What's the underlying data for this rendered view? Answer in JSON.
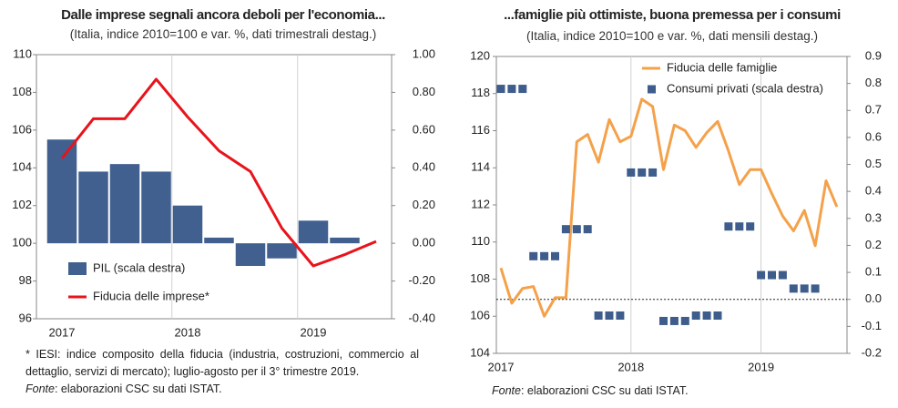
{
  "chart_data": [
    {
      "type": "bar",
      "title": "Dalle imprese segnali ancora deboli per l'economia...",
      "subtitle": "(Italia, indice 2010=100 e var. %, dati trimestrali destag.)",
      "categories": [
        "2017",
        null,
        null,
        null,
        "2018",
        null,
        null,
        null,
        "2019",
        null,
        null
      ],
      "series": [
        {
          "name": "PIL (scala destra)",
          "type": "bar",
          "axis": "y2",
          "color": "#41608f",
          "values": [
            0.55,
            0.38,
            0.42,
            0.38,
            0.2,
            0.03,
            -0.12,
            -0.08,
            0.12,
            0.03,
            null
          ]
        },
        {
          "name": "Fiducia delle imprese*",
          "type": "line",
          "color": "#e8131b",
          "values": [
            104.5,
            106.6,
            106.6,
            108.7,
            106.7,
            104.9,
            103.8,
            100.8,
            98.8,
            99.4,
            100.1
          ]
        }
      ],
      "ylim": [
        96,
        110
      ],
      "yticks": [
        96,
        98,
        100,
        102,
        104,
        106,
        108,
        110
      ],
      "y2lim": [
        -0.4,
        1.0
      ],
      "y2ticks": [
        {
          "value": -0.4,
          "label": "-0.40"
        },
        {
          "value": -0.2,
          "label": "-0.20"
        },
        {
          "value": 0,
          "label": "0.00"
        },
        {
          "value": 0.2,
          "label": "0.20"
        },
        {
          "value": 0.4,
          "label": "0.40"
        },
        {
          "value": 0.6,
          "label": "0.60"
        },
        {
          "value": 0.8,
          "label": "0.80"
        },
        {
          "value": 1.0,
          "label": "1.00"
        }
      ],
      "zero_line": false,
      "note": "* IESI: indice composito della fiducia (industria, costruzioni, commercio al dettaglio, servizi di mercato); luglio-agosto per il 3° trimestre 2019.",
      "source": {
        "label": "Fonte",
        "text": ": elaborazioni CSC su dati ISTAT."
      }
    },
    {
      "type": "line",
      "title": "...famiglie più ottimiste, buona premessa per i consumi",
      "subtitle": "(Italia, indice 2010=100 e var. %, dati mensili destag.)",
      "categories": [
        "2017",
        null,
        null,
        null,
        null,
        null,
        null,
        null,
        null,
        null,
        null,
        null,
        "2018",
        null,
        null,
        null,
        null,
        null,
        null,
        null,
        null,
        null,
        null,
        null,
        "2019",
        null,
        null,
        null,
        null,
        null,
        null,
        null
      ],
      "series": [
        {
          "name": "Fiducia delle famiglie",
          "type": "line",
          "color": "#f4a14a",
          "values": [
            108.6,
            106.7,
            107.5,
            107.6,
            106.0,
            107.0,
            107.0,
            115.4,
            115.8,
            114.3,
            116.6,
            115.4,
            115.7,
            117.7,
            117.3,
            113.9,
            116.3,
            116.0,
            115.1,
            115.9,
            116.5,
            114.9,
            113.1,
            113.9,
            113.9,
            112.6,
            111.4,
            110.6,
            111.7,
            109.8,
            113.3,
            111.9
          ]
        },
        {
          "name": "Consumi privati (scala destra)",
          "type": "points",
          "axis": "y2",
          "color": "#3e5d8c",
          "values": [
            0.78,
            0.78,
            0.78,
            0.16,
            0.16,
            0.16,
            0.26,
            0.26,
            0.26,
            -0.06,
            -0.06,
            -0.06,
            0.47,
            0.47,
            0.47,
            -0.08,
            -0.08,
            -0.08,
            -0.06,
            -0.06,
            -0.06,
            0.27,
            0.27,
            0.27,
            0.09,
            0.09,
            0.09,
            0.04,
            0.04,
            0.04,
            null,
            null
          ]
        }
      ],
      "ylim": [
        104,
        120
      ],
      "yticks": [
        104,
        106,
        108,
        110,
        112,
        114,
        116,
        118,
        120
      ],
      "y2lim": [
        -0.2,
        0.9
      ],
      "y2ticks": [
        -0.2,
        -0.1,
        {
          "value": 0,
          "label": "0.0"
        },
        0.1,
        0.2,
        0.3,
        0.4,
        0.5,
        0.6,
        0.7,
        0.8,
        0.9
      ],
      "zero_line": true,
      "source": {
        "label": "Fonte",
        "text": ": elaborazioni CSC su dati ISTAT."
      }
    }
  ]
}
